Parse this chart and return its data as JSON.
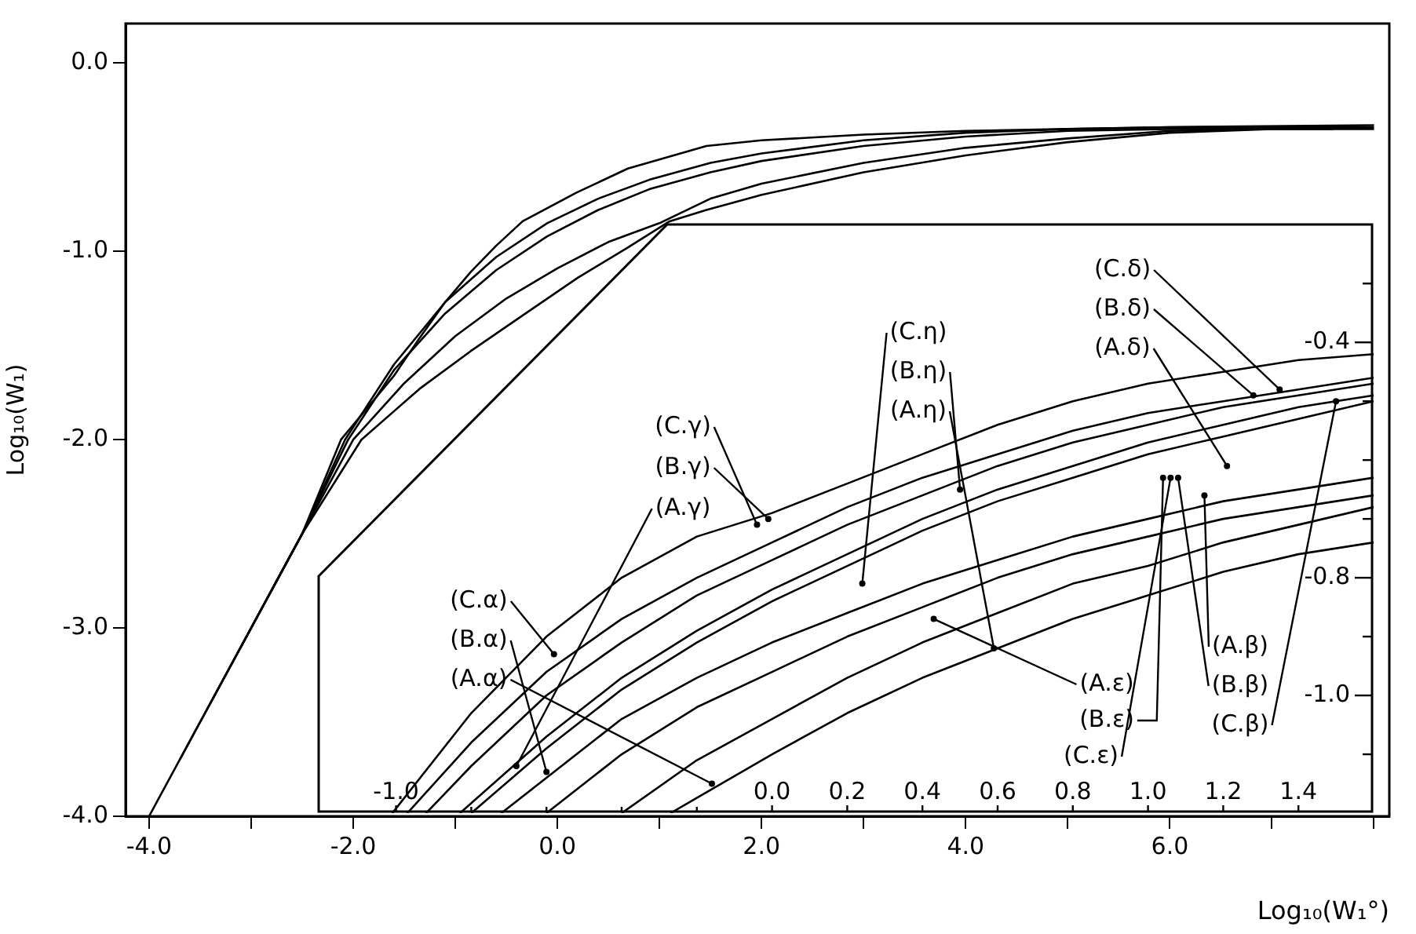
{
  "chart_data": [
    {
      "type": "line",
      "xlabel": "Log₁₀(W₁°)",
      "ylabel": "Log₁₀(W₁)",
      "marker": "none",
      "xlim": [
        -4.23,
        8.15
      ],
      "ylim": [
        -4.0,
        0.21
      ],
      "xticks": [
        {
          "value": -4,
          "label": "-4.0"
        },
        {
          "value": -3,
          "label": null
        },
        {
          "value": -2,
          "label": "-2.0"
        },
        {
          "value": -1,
          "label": null
        },
        {
          "value": 0,
          "label": "0.0"
        },
        {
          "value": 1,
          "label": null
        },
        {
          "value": 2,
          "label": "2.0"
        },
        {
          "value": 3,
          "label": null
        },
        {
          "value": 4,
          "label": "4.0"
        },
        {
          "value": 5,
          "label": null
        },
        {
          "value": 6,
          "label": "6.0"
        },
        {
          "value": 7,
          "label": null
        },
        {
          "value": 8,
          "label": null
        }
      ],
      "yticks": [
        {
          "value": -4,
          "label": "-4.0"
        },
        {
          "value": -3,
          "label": "-3.0"
        },
        {
          "value": -2,
          "label": "-2.0"
        },
        {
          "value": -1,
          "label": "-1.0"
        },
        {
          "value": 0,
          "label": "0.0"
        }
      ],
      "series": [
        {
          "color": "#000000",
          "x": [
            -4,
            -3,
            -2.5,
            -2.12,
            -1.6,
            -1.35,
            -1.1,
            -0.85,
            -0.6,
            -0.34,
            0.18,
            0.69,
            1.46,
            2,
            3,
            4,
            5,
            6,
            8
          ],
          "values": [
            -4,
            -3,
            -2.5,
            -2.0,
            -1.66,
            -1.46,
            -1.27,
            -1.11,
            -0.97,
            -0.84,
            -0.69,
            -0.56,
            -0.44,
            -0.41,
            -0.38,
            -0.36,
            -0.35,
            -0.34,
            -0.33
          ]
        },
        {
          "color": "#000000",
          "x": [
            -3.7,
            -3,
            -2.5,
            -2.08,
            -1.6,
            -1.1,
            -0.6,
            -0.1,
            0.4,
            0.9,
            1.5,
            2,
            3,
            4,
            5,
            6,
            8
          ],
          "values": [
            -3.7,
            -3,
            -2.5,
            -2.0,
            -1.6,
            -1.27,
            -1.03,
            -0.85,
            -0.72,
            -0.62,
            -0.53,
            -0.48,
            -0.41,
            -0.37,
            -0.35,
            -0.34,
            -0.34
          ]
        },
        {
          "color": "#000000",
          "x": [
            -3.4,
            -3,
            -2.5,
            -2.05,
            -1.6,
            -1.1,
            -0.6,
            -0.1,
            0.4,
            0.9,
            1.5,
            2,
            3,
            4,
            5,
            6,
            8
          ],
          "values": [
            -3.4,
            -3,
            -2.5,
            -2.0,
            -1.63,
            -1.33,
            -1.1,
            -0.92,
            -0.78,
            -0.67,
            -0.58,
            -0.52,
            -0.44,
            -0.39,
            -0.36,
            -0.35,
            -0.35
          ]
        },
        {
          "color": "#000000",
          "x": [
            -3.1,
            -2.5,
            -2.0,
            -1.5,
            -1,
            -0.5,
            0,
            0.5,
            1.0,
            1.5,
            2,
            3,
            4,
            5,
            6,
            7.8
          ],
          "values": [
            -3.1,
            -2.5,
            -2.0,
            -1.7,
            -1.45,
            -1.25,
            -1.09,
            -0.95,
            -0.85,
            -0.72,
            -0.64,
            -0.53,
            -0.45,
            -0.4,
            -0.36,
            -0.34
          ]
        },
        {
          "color": "#000000",
          "x": [
            -2.8,
            -2.5,
            -1.92,
            -1.35,
            -0.85,
            -0.34,
            0.2,
            0.69,
            1.1,
            1.46,
            2,
            3,
            4,
            5,
            6,
            7,
            7.6
          ],
          "values": [
            -2.8,
            -2.5,
            -2.0,
            -1.73,
            -1.53,
            -1.34,
            -1.14,
            -0.98,
            -0.84,
            -0.78,
            -0.7,
            -0.58,
            -0.49,
            -0.42,
            -0.37,
            -0.35,
            -0.35
          ]
        }
      ]
    },
    {
      "type": "line",
      "marker": "none",
      "xlim": [
        -1.21,
        1.6
      ],
      "ylim": [
        -1.2,
        -0.197
      ],
      "xticks": [
        {
          "value": -1,
          "label": "-1.0"
        },
        {
          "value": -0.8,
          "label": null
        },
        {
          "value": -0.6,
          "label": null
        },
        {
          "value": -0.4,
          "label": null
        },
        {
          "value": -0.2,
          "label": null
        },
        {
          "value": 0,
          "label": "0.0"
        },
        {
          "value": 0.2,
          "label": "0.2"
        },
        {
          "value": 0.4,
          "label": "0.4"
        },
        {
          "value": 0.6,
          "label": "0.6"
        },
        {
          "value": 0.8,
          "label": "0.8"
        },
        {
          "value": 1,
          "label": "1.0"
        },
        {
          "value": 1.2,
          "label": "1.2"
        },
        {
          "value": 1.4,
          "label": "1.4"
        }
      ],
      "yticks": [
        {
          "value": -1.1,
          "label": null
        },
        {
          "value": -1,
          "label": "-1.0"
        },
        {
          "value": -0.9,
          "label": null
        },
        {
          "value": -0.8,
          "label": "-0.8"
        },
        {
          "value": -0.7,
          "label": null
        },
        {
          "value": -0.6,
          "label": null
        },
        {
          "value": -0.5,
          "label": null
        },
        {
          "value": -0.4,
          "label": "-0.4"
        },
        {
          "value": -0.3,
          "label": null
        }
      ],
      "series": [
        {
          "color": "#000000",
          "x": [
            -1.01,
            -0.8,
            -0.6,
            -0.4,
            -0.2,
            0,
            0.2,
            0.4,
            0.6,
            0.8,
            1.0,
            1.2,
            1.4,
            1.6
          ],
          "values": [
            -1.2,
            -1.03,
            -0.9,
            -0.8,
            -0.73,
            -0.69,
            -0.64,
            -0.59,
            -0.54,
            -0.5,
            -0.47,
            -0.45,
            -0.43,
            -0.42
          ]
        },
        {
          "color": "#000000",
          "x": [
            -0.97,
            -0.8,
            -0.6,
            -0.4,
            -0.2,
            0,
            0.2,
            0.4,
            0.6,
            0.8,
            1.0,
            1.2,
            1.4,
            1.6
          ],
          "values": [
            -1.2,
            -1.08,
            -0.96,
            -0.87,
            -0.8,
            -0.74,
            -0.68,
            -0.63,
            -0.59,
            -0.55,
            -0.52,
            -0.5,
            -0.48,
            -0.46
          ]
        },
        {
          "color": "#000000",
          "x": [
            -0.92,
            -0.8,
            -0.6,
            -0.4,
            -0.2,
            0,
            0.2,
            0.4,
            0.6,
            0.8,
            1.0,
            1.2,
            1.4,
            1.6
          ],
          "values": [
            -1.2,
            -1.12,
            -1.0,
            -0.91,
            -0.83,
            -0.77,
            -0.71,
            -0.66,
            -0.61,
            -0.57,
            -0.54,
            -0.51,
            -0.49,
            -0.47
          ]
        },
        {
          "color": "#000000",
          "x": [
            -0.83,
            -0.6,
            -0.4,
            -0.2,
            0,
            0.2,
            0.4,
            0.6,
            0.8,
            1.0,
            1.2,
            1.4,
            1.6
          ],
          "values": [
            -1.2,
            -1.07,
            -0.97,
            -0.89,
            -0.82,
            -0.76,
            -0.7,
            -0.65,
            -0.61,
            -0.57,
            -0.54,
            -0.51,
            -0.49
          ]
        },
        {
          "color": "#000000",
          "x": [
            -0.8,
            -0.6,
            -0.4,
            -0.2,
            0,
            0.2,
            0.4,
            0.6,
            0.8,
            1.0,
            1.2,
            1.4,
            1.6
          ],
          "values": [
            -1.2,
            -1.09,
            -0.99,
            -0.91,
            -0.84,
            -0.78,
            -0.72,
            -0.67,
            -0.63,
            -0.59,
            -0.56,
            -0.53,
            -0.5
          ]
        },
        {
          "color": "#000000",
          "x": [
            -0.72,
            -0.4,
            -0.2,
            0,
            0.2,
            0.4,
            0.6,
            0.8,
            1.0,
            1.2,
            1.4,
            1.6
          ],
          "values": [
            -1.2,
            -1.04,
            -0.97,
            -0.91,
            -0.86,
            -0.81,
            -0.77,
            -0.73,
            -0.7,
            -0.67,
            -0.65,
            -0.63
          ]
        },
        {
          "color": "#000000",
          "x": [
            -0.6,
            -0.4,
            -0.2,
            0,
            0.2,
            0.4,
            0.6,
            0.8,
            1.0,
            1.2,
            1.4,
            1.6
          ],
          "values": [
            -1.2,
            -1.1,
            -1.02,
            -0.96,
            -0.9,
            -0.85,
            -0.8,
            -0.76,
            -0.73,
            -0.7,
            -0.68,
            -0.66
          ]
        },
        {
          "color": "#000000",
          "x": [
            -0.4,
            -0.2,
            0,
            0.2,
            0.4,
            0.6,
            0.8,
            1.0,
            1.2,
            1.4,
            1.6
          ],
          "values": [
            -1.2,
            -1.11,
            -1.04,
            -0.97,
            -0.91,
            -0.86,
            -0.81,
            -0.78,
            -0.74,
            -0.71,
            -0.68
          ]
        },
        {
          "color": "#000000",
          "x": [
            -0.27,
            0,
            0.2,
            0.4,
            0.6,
            0.8,
            1.0,
            1.2,
            1.4,
            1.6
          ],
          "values": [
            -1.2,
            -1.1,
            -1.03,
            -0.97,
            -0.92,
            -0.87,
            -0.83,
            -0.79,
            -0.76,
            -0.74
          ]
        }
      ],
      "annotations": [
        {
          "text": "(C.α)",
          "x": -0.58,
          "y": -0.93
        },
        {
          "text": "(B.α)",
          "x": -0.6,
          "y": -1.13
        },
        {
          "text": "(A.α)",
          "x": -0.16,
          "y": -1.15
        },
        {
          "text": "(C.γ)",
          "x": -0.04,
          "y": -0.71
        },
        {
          "text": "(B.γ)",
          "x": -0.01,
          "y": -0.7
        },
        {
          "text": "(A.γ)",
          "x": -0.68,
          "y": -1.12
        },
        {
          "text": "(C.η)",
          "x": 0.24,
          "y": -0.81
        },
        {
          "text": "(B.η)",
          "x": 0.5,
          "y": -0.65
        },
        {
          "text": "(A.η)",
          "x": 0.59,
          "y": -0.92
        },
        {
          "text": "(C.δ)",
          "x": 1.35,
          "y": -0.48
        },
        {
          "text": "(B.δ)",
          "x": 1.28,
          "y": -0.49
        },
        {
          "text": "(A.δ)",
          "x": 1.21,
          "y": -0.61
        },
        {
          "text": "(A.ε)",
          "x": 0.43,
          "y": -0.87
        },
        {
          "text": "(B.ε)",
          "x": 1.04,
          "y": -0.63
        },
        {
          "text": "(C.ε)",
          "x": 1.06,
          "y": -0.63
        },
        {
          "text": "(A.β)",
          "x": 1.15,
          "y": -0.66
        },
        {
          "text": "(B.β)",
          "x": 1.08,
          "y": -0.63
        },
        {
          "text": "(C.β)",
          "x": 1.5,
          "y": -0.5
        }
      ]
    }
  ]
}
